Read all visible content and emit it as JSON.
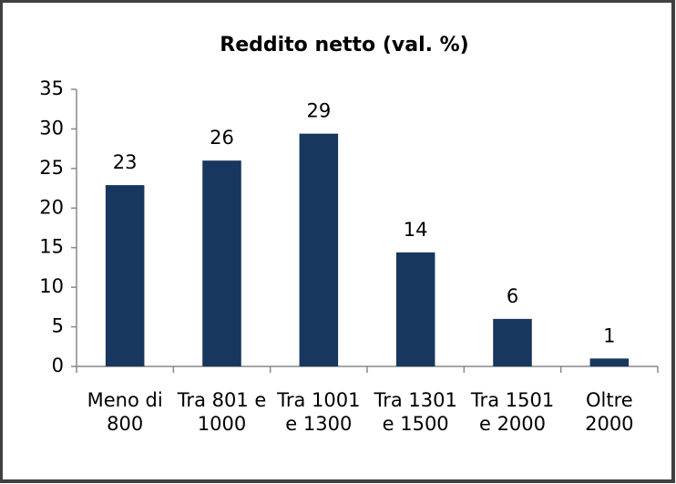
{
  "chart_data": {
    "type": "bar",
    "title": "Reddito netto (val. %)",
    "categories": [
      "Meno di 800",
      "Tra 801 e 1000",
      "Tra 1001 e 1300",
      "Tra 1301 e 1500",
      "Tra 1501 e 2000",
      "Oltre 2000"
    ],
    "values": [
      22.9,
      26,
      29.4,
      14.4,
      6,
      1
    ],
    "value_labels": [
      "23",
      "26",
      "29",
      "14",
      "6",
      "1"
    ],
    "color": "#17375e",
    "ylim": [
      0,
      35
    ],
    "yticks": [
      0,
      5,
      10,
      15,
      20,
      25,
      30,
      35
    ],
    "grid": false
  }
}
